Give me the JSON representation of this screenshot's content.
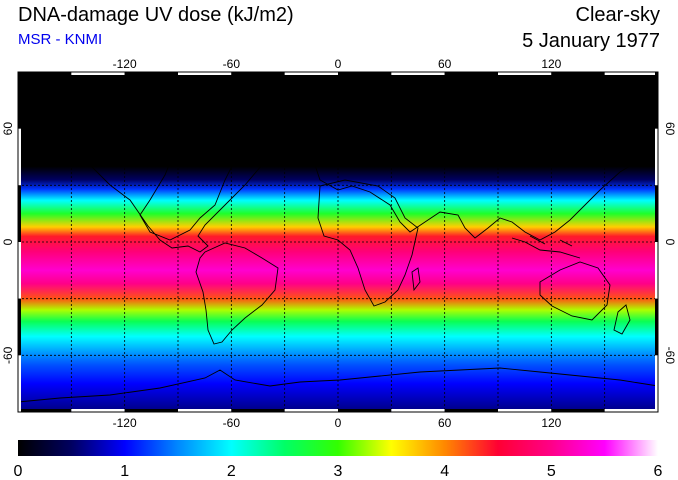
{
  "title": "DNA-damage UV dose (kJ/m2)",
  "subtitle": "MSR - KNMI",
  "mode": "Clear-sky",
  "date": "5 January 1977",
  "map": {
    "projection": "equirectangular",
    "lon_range": [
      -180,
      180
    ],
    "lat_range": [
      -90,
      90
    ],
    "lon_ticks": [
      -120,
      -60,
      0,
      60,
      120
    ],
    "lon_tick_labels": [
      "-120",
      "-60",
      "0",
      "60",
      "120"
    ],
    "lat_ticks": [
      60,
      0,
      -60
    ],
    "lat_tick_labels": [
      "60",
      "0",
      "-60"
    ],
    "grid": "dashed every 30 degrees",
    "zonal_profile": [
      {
        "lat": 90,
        "value": 0.0
      },
      {
        "lat": 40,
        "value": 0.0
      },
      {
        "lat": 33,
        "value": 0.5
      },
      {
        "lat": 28,
        "value": 1.2
      },
      {
        "lat": 22,
        "value": 2.0
      },
      {
        "lat": 15,
        "value": 2.8
      },
      {
        "lat": 8,
        "value": 3.7
      },
      {
        "lat": 3,
        "value": 4.4
      },
      {
        "lat": -5,
        "value": 4.9
      },
      {
        "lat": -15,
        "value": 5.3
      },
      {
        "lat": -22,
        "value": 5.0
      },
      {
        "lat": -30,
        "value": 4.2
      },
      {
        "lat": -36,
        "value": 3.3
      },
      {
        "lat": -42,
        "value": 2.6
      },
      {
        "lat": -50,
        "value": 2.0
      },
      {
        "lat": -58,
        "value": 1.6
      },
      {
        "lat": -65,
        "value": 1.3
      },
      {
        "lat": -75,
        "value": 1.0
      },
      {
        "lat": -90,
        "value": 0.6
      }
    ]
  },
  "colorbar": {
    "min": 0,
    "max": 6,
    "labels": [
      "0",
      "1",
      "2",
      "3",
      "4",
      "5",
      "6"
    ],
    "stops": [
      {
        "value": 0.0,
        "color": "#000000"
      },
      {
        "value": 0.5,
        "color": "#000060"
      },
      {
        "value": 1.0,
        "color": "#0000ff"
      },
      {
        "value": 1.5,
        "color": "#0088ff"
      },
      {
        "value": 2.0,
        "color": "#00ffff"
      },
      {
        "value": 2.5,
        "color": "#00ff66"
      },
      {
        "value": 3.0,
        "color": "#33ff00"
      },
      {
        "value": 3.5,
        "color": "#ffff00"
      },
      {
        "value": 4.0,
        "color": "#ff8800"
      },
      {
        "value": 4.5,
        "color": "#ff0033"
      },
      {
        "value": 5.0,
        "color": "#ff0088"
      },
      {
        "value": 5.5,
        "color": "#ff00ff"
      },
      {
        "value": 6.0,
        "color": "#ffffff"
      }
    ]
  }
}
